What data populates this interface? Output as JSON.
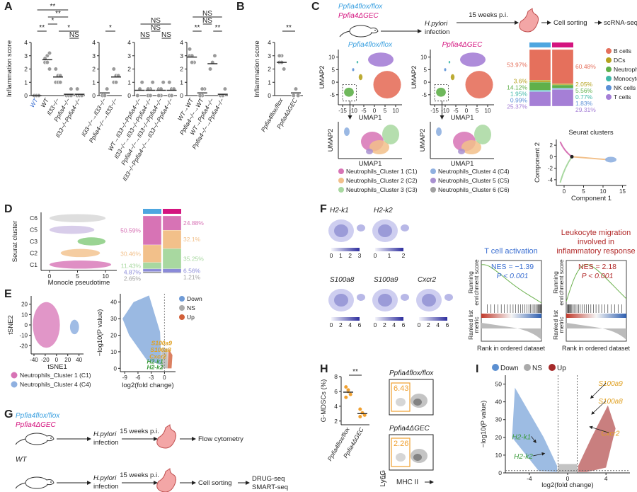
{
  "panels": {
    "A": {
      "letter": "A",
      "y_label": "Inflammation score",
      "plots": [
        {
          "ylim": [
            0,
            4
          ],
          "yticks": [
            0,
            1,
            2,
            3,
            4
          ],
          "groups": [
            {
              "name": "WT",
              "label_color": "#3b6fd1",
              "points": [
                0,
                0,
                0,
                0,
                0,
                0
              ],
              "mean": 0
            },
            {
              "name": "WT",
              "points": [
                2.5,
                3,
                3.2,
                2.8,
                2.5,
                2
              ],
              "mean": 2.7
            },
            {
              "name": "Il33−/−",
              "points": [
                1,
                1.5,
                1.5,
                2,
                1,
                1
              ],
              "mean": 1.4
            },
            {
              "name": "Ppfia4−/−",
              "points": [
                0,
                0,
                0.5,
                0,
                0,
                0
              ],
              "mean": 0.1
            },
            {
              "name": "Il33−/−Ppfia4−/−",
              "points": [
                0,
                0,
                0,
                0.5,
                0,
                0
              ],
              "mean": 0.1
            }
          ],
          "sig": [
            "**",
            "*",
            "**",
            "**",
            "*",
            "NS"
          ]
        },
        {
          "ylim": [
            0,
            4
          ],
          "yticks": [
            0,
            1,
            2,
            3,
            4
          ],
          "groups": [
            {
              "name": "Il33−/−→Il33−/−",
              "points": [
                0,
                0,
                0.5,
                0,
                0
              ],
              "mean": 0.2
            },
            {
              "name": "Ppfia4−/−→Il33−/−",
              "points": [
                1,
                1.5,
                1.5,
                2,
                1
              ],
              "mean": 1.4
            }
          ],
          "sig": [
            "*"
          ]
        },
        {
          "ylim": [
            0,
            4
          ],
          "yticks": [
            0,
            1,
            2,
            3,
            4
          ],
          "groups": [
            {
              "name": "WT→Il33−/−Ppfia4−/−",
              "points": [
                0,
                0.5,
                1,
                0,
                0.5
              ],
              "mean": 0.4
            },
            {
              "name": "Il33−/−→Il33−/−Ppfia4−/−",
              "points": [
                0,
                0.5,
                1,
                0.5,
                0
              ],
              "mean": 0.4
            },
            {
              "name": "Ppfia4−/−→Il33−/−Ppfia4−/−",
              "points": [
                0.5,
                0,
                1,
                0,
                0.5
              ],
              "mean": 0.4
            },
            {
              "name": "Il33−/−Ppfia4−/−→Il33−/−Ppfia4−/−",
              "points": [
                0,
                0.5,
                0.5,
                1,
                0
              ],
              "mean": 0.4
            }
          ],
          "sig": [
            "NS",
            "NS",
            "NS",
            "NS"
          ]
        },
        {
          "ylim": [
            0,
            4
          ],
          "yticks": [
            0,
            1,
            2,
            3,
            4
          ],
          "groups": [
            {
              "name": "WT→WT",
              "points": [
                3,
                3,
                2.5,
                3.5,
                2.5
              ],
              "mean": 2.9
            },
            {
              "name": "Ppfia4−/−→WT",
              "points": [
                0,
                0,
                0.5,
                0,
                0.5
              ],
              "mean": 0.2
            },
            {
              "name": "WT→Ppfia4−/−",
              "points": [
                2,
                2.5,
                3,
                2,
                2.5
              ],
              "mean": 2.4
            },
            {
              "name": "Ppfia4−/−→Ppfia4−/−",
              "points": [
                0,
                0,
                0.5,
                0,
                0
              ],
              "mean": 0.1
            }
          ],
          "sig": [
            "**",
            "**",
            "NS",
            "NS"
          ]
        }
      ]
    },
    "B": {
      "letter": "B",
      "y_label": "Inflammation score",
      "ylim": [
        0,
        4
      ],
      "yticks": [
        0,
        1,
        2,
        3,
        4
      ],
      "groups": [
        {
          "name": "Ppfia4flox/flox",
          "points": [
            2.5,
            3,
            2,
            3,
            2.5
          ],
          "mean": 2.5
        },
        {
          "name": "Ppfia4ΔGEC",
          "points": [
            0,
            0.5,
            0,
            0,
            0.5
          ],
          "mean": 0.2
        }
      ],
      "sig": [
        "**"
      ]
    },
    "C": {
      "letter": "C",
      "strains": [
        "Ppfia4flox/flox",
        "Ppfia4ΔGEC"
      ],
      "infection": [
        "H.pylori",
        "infection"
      ],
      "weeks": "15 weeks p.i.",
      "sorting": "Cell sorting",
      "seq": "scRNA-seq",
      "umaps": [
        {
          "title": "Ppfia4flox/flox",
          "color": "#3aa0e0",
          "x_label": "UMAP1",
          "y_label": "UMAP2",
          "xlim": [
            -17,
            13
          ],
          "ylim": [
            -9,
            13
          ],
          "xticks": [
            -15,
            -10,
            -5,
            0,
            5,
            10
          ],
          "yticks": [
            -5,
            0,
            5,
            10
          ]
        },
        {
          "title": "Ppfia4ΔGEC",
          "color": "#d4147f",
          "x_label": "UMAP1",
          "y_label": "UMAP2",
          "xlim": [
            -17,
            13
          ],
          "ylim": [
            -9,
            13
          ],
          "xticks": [
            -15,
            -10,
            -5,
            0,
            5,
            10
          ],
          "yticks": [
            -5,
            0,
            5,
            10
          ]
        }
      ],
      "subumaps": [
        {
          "x_label": "UMAP1",
          "y_label": "UMAP2"
        },
        {
          "x_label": "UMAP1",
          "y_label": "UMAP2"
        }
      ],
      "composition": {
        "header_colors": [
          "#4ea6e0",
          "#d4147f"
        ],
        "series": [
          {
            "name": "B cells",
            "color": "#e5705c",
            "values": [
              53.97,
              60.48
            ],
            "value_labels": [
              "53.97%",
              "60.48%"
            ]
          },
          {
            "name": "DCs",
            "color": "#b5a21e",
            "values": [
              3.6,
              2.05
            ],
            "value_labels": [
              "3.6%",
              "2.05%"
            ]
          },
          {
            "name": "Neutrophils",
            "color": "#5fb04a",
            "values": [
              14.12,
              5.56
            ],
            "value_labels": [
              "14.12%",
              "5.56%"
            ]
          },
          {
            "name": "Monocytes",
            "color": "#3fb8a8",
            "values": [
              1.95,
              0.77
            ],
            "value_labels": [
              "1.95%",
              "0.77%"
            ]
          },
          {
            "name": "NK cells",
            "color": "#5b8fd6",
            "values": [
              0.99,
              1.83
            ],
            "value_labels": [
              "0.99%",
              "1.83%"
            ]
          },
          {
            "name": "T cells",
            "color": "#a57fd6",
            "values": [
              25.37,
              29.31
            ],
            "value_labels": [
              "25.37%",
              "29.31%"
            ]
          }
        ]
      },
      "trajectory": {
        "title": "Seurat clusters",
        "x_label": "Component 1",
        "y_label": "Component 2",
        "xlim": [
          -2,
          16
        ],
        "ylim": [
          -5,
          3
        ],
        "xticks": [
          0,
          5,
          10,
          15
        ],
        "yticks": [
          -4,
          -2,
          0,
          2
        ]
      },
      "clusters": [
        {
          "name": "Neutrophils_Cluster 1 (C1)",
          "color": "#d773b5"
        },
        {
          "name": "Neutrophils_Cluster 2 (C2)",
          "color": "#f2c08a"
        },
        {
          "name": "Neutrophils_Cluster 3 (C3)",
          "color": "#a8d8a0"
        },
        {
          "name": "Neutrophils_Cluster 4 (C4)",
          "color": "#8fb0e0"
        },
        {
          "name": "Neutrophils_Cluster 5 (C5)",
          "color": "#a890d0"
        },
        {
          "name": "Neutrophils_Cluster 6 (C6)",
          "color": "#a0a0a0"
        }
      ]
    },
    "D": {
      "letter": "D",
      "y_label": "Seurat cluster",
      "x_label": "Monocle pseudotime",
      "categories": [
        "C6",
        "C5",
        "C3",
        "C2",
        "C1"
      ],
      "category_colors": [
        "#a0a0a0",
        "#a890d0",
        "#8fcf87",
        "#f2c08a",
        "#d773b5"
      ],
      "xlim": [
        -1.5,
        12
      ],
      "xticks": [
        0,
        5,
        10
      ],
      "composition": {
        "header_colors": [
          "#4ea6e0",
          "#d4147f"
        ],
        "series": [
          {
            "color": "#d773b5",
            "values": [
              50.59,
              24.88
            ],
            "value_labels": [
              "50.59%",
              "24.88%"
            ]
          },
          {
            "color": "#f2c08a",
            "values": [
              30.46,
              32.1
            ],
            "value_labels": [
              "30.46%",
              "32.1%"
            ]
          },
          {
            "color": "#a8d8a0",
            "values": [
              11.43,
              35.25
            ],
            "value_labels": [
              "11.43%",
              "35.25%"
            ]
          },
          {
            "color": "#8a8ad8",
            "values": [
              4.87,
              6.56
            ],
            "value_labels": [
              "4.87%",
              "6.56%"
            ]
          },
          {
            "color": "#a0a0a0",
            "values": [
              2.65,
              1.21
            ],
            "value_labels": [
              "2.65%",
              "1.21%"
            ]
          }
        ]
      }
    },
    "E": {
      "letter": "E",
      "tsne": {
        "x_label": "tSNE1",
        "y_label": "tSNE2",
        "xlim": [
          -45,
          48
        ],
        "ylim": [
          -28,
          28
        ],
        "xticks": [
          -40,
          -20,
          0,
          20,
          40
        ],
        "yticks": [
          -20,
          -10,
          0,
          10,
          20
        ]
      },
      "legend": [
        {
          "name": "Neutrophils_Cluster 1 (C1)",
          "color": "#d773b5"
        },
        {
          "name": "Neutrophils_Cluster 4 (C4)",
          "color": "#8fb0e0"
        }
      ],
      "volcano": {
        "x_label": "log2(fold change)",
        "y_label": "−log10(P value)",
        "xlim": [
          -10,
          2.5
        ],
        "ylim": [
          -2,
          45
        ],
        "xticks": [
          -9,
          -6,
          -3,
          0
        ],
        "yticks": [
          0,
          10,
          20,
          30,
          40
        ],
        "legend": [
          {
            "name": "Down",
            "color": "#6f9bd6"
          },
          {
            "name": "NS",
            "color": "#aaaaaa"
          },
          {
            "name": "Up",
            "color": "#d2603a"
          }
        ],
        "genes": [
          {
            "name": "S100a9",
            "color": "#e0a020"
          },
          {
            "name": "S100a8",
            "color": "#e0a020"
          },
          {
            "name": "Cxcr2",
            "color": "#e0a020"
          },
          {
            "name": "H2-k1",
            "color": "#3a9a3a"
          },
          {
            "name": "H2-k2",
            "color": "#3a9a3a"
          }
        ]
      }
    },
    "F": {
      "letter": "F",
      "features": [
        {
          "gene": "H2-k1",
          "scale": [
            0,
            1,
            2,
            3
          ]
        },
        {
          "gene": "H2-k2",
          "scale": [
            0,
            1,
            2
          ]
        },
        {
          "gene": "S100a8",
          "scale": [
            0,
            2,
            4,
            6
          ]
        },
        {
          "gene": "S100a9",
          "scale": [
            0,
            2,
            4,
            6
          ]
        },
        {
          "gene": "Cxcr2",
          "scale": [
            0,
            2,
            4,
            6
          ]
        }
      ],
      "gsea": [
        {
          "title": [
            "T cell activation"
          ],
          "color": "#3b6fd1",
          "nes": "NES = −1.39",
          "p": "P < 0.001",
          "y_label": [
            "Running",
            "enrichment score"
          ],
          "y2_label": [
            "Ranked list",
            "metric"
          ],
          "x_label": "Rank in ordered dataset"
        },
        {
          "title": [
            "Leukocyte migration",
            "involved in",
            "inflammatory response"
          ],
          "color": "#b22a2a",
          "nes": "NES = 2.18",
          "p": "P < 0.001",
          "y_label": [
            "Running",
            "enrichment score"
          ],
          "y2_label": [
            "Ranked list",
            "metric"
          ],
          "x_label": "Rank in ordered dataset"
        }
      ]
    },
    "G": {
      "letter": "G",
      "row1": {
        "strains": [
          "Ppfia4flox/flox",
          "Ppfia4ΔGEC"
        ],
        "infection": [
          "H.pylori",
          "infection"
        ],
        "weeks": "15 weeks p.i.",
        "end": [
          "Flow cytometry"
        ]
      },
      "row2": {
        "strains": [
          "WT"
        ],
        "infection": [
          "H.pylori",
          "infection"
        ],
        "weeks": "15 weeks p.i.",
        "sorting": "Cell sorting",
        "end": [
          "DRUG-seq",
          "SMART-seq"
        ]
      }
    },
    "H": {
      "letter": "H",
      "y_label": "G-MDSCs (%)",
      "ylim": [
        1.5,
        8
      ],
      "yticks": [
        2,
        4,
        6,
        8
      ],
      "groups": [
        {
          "name": "Ppfia4flox/flox",
          "point_color": "#f0a030",
          "points": [
            6.6,
            6.0,
            5.6,
            5.2,
            6.2
          ],
          "mean": 5.9
        },
        {
          "name": "Ppfia4ΔGEC",
          "point_color": "#f0a030",
          "points": [
            3.6,
            3.1,
            2.8,
            2.6
          ],
          "mean": 3.0
        }
      ],
      "sig": [
        "**"
      ],
      "flow": [
        {
          "title": "Ppfia4flox/flox",
          "gate": "6.43"
        },
        {
          "title": "Ppfia4ΔGEC",
          "gate": "2.26"
        }
      ],
      "flow_x_label": "MHC II",
      "flow_y_label": "Ly6G"
    },
    "I": {
      "letter": "I",
      "x_label": "log2(fold change)",
      "y_label": "−log10(P value)",
      "xlim": [
        -6.5,
        6.5
      ],
      "ylim": [
        0,
        55
      ],
      "xticks": [
        -4,
        0,
        4
      ],
      "yticks": [
        0,
        10,
        20,
        30,
        40,
        50
      ],
      "legend": [
        {
          "name": "Down",
          "color": "#5b8fd1"
        },
        {
          "name": "NS",
          "color": "#aaaaaa"
        },
        {
          "name": "Up",
          "color": "#a52a2a"
        }
      ],
      "genes": [
        {
          "name": "S100a9",
          "color": "#e0a020"
        },
        {
          "name": "S100a8",
          "color": "#e0a020"
        },
        {
          "name": "Cxcr2",
          "color": "#e0a020"
        },
        {
          "name": "H2-k1",
          "color": "#3a9a3a"
        },
        {
          "name": "H2-k2",
          "color": "#3a9a3a"
        }
      ]
    }
  }
}
